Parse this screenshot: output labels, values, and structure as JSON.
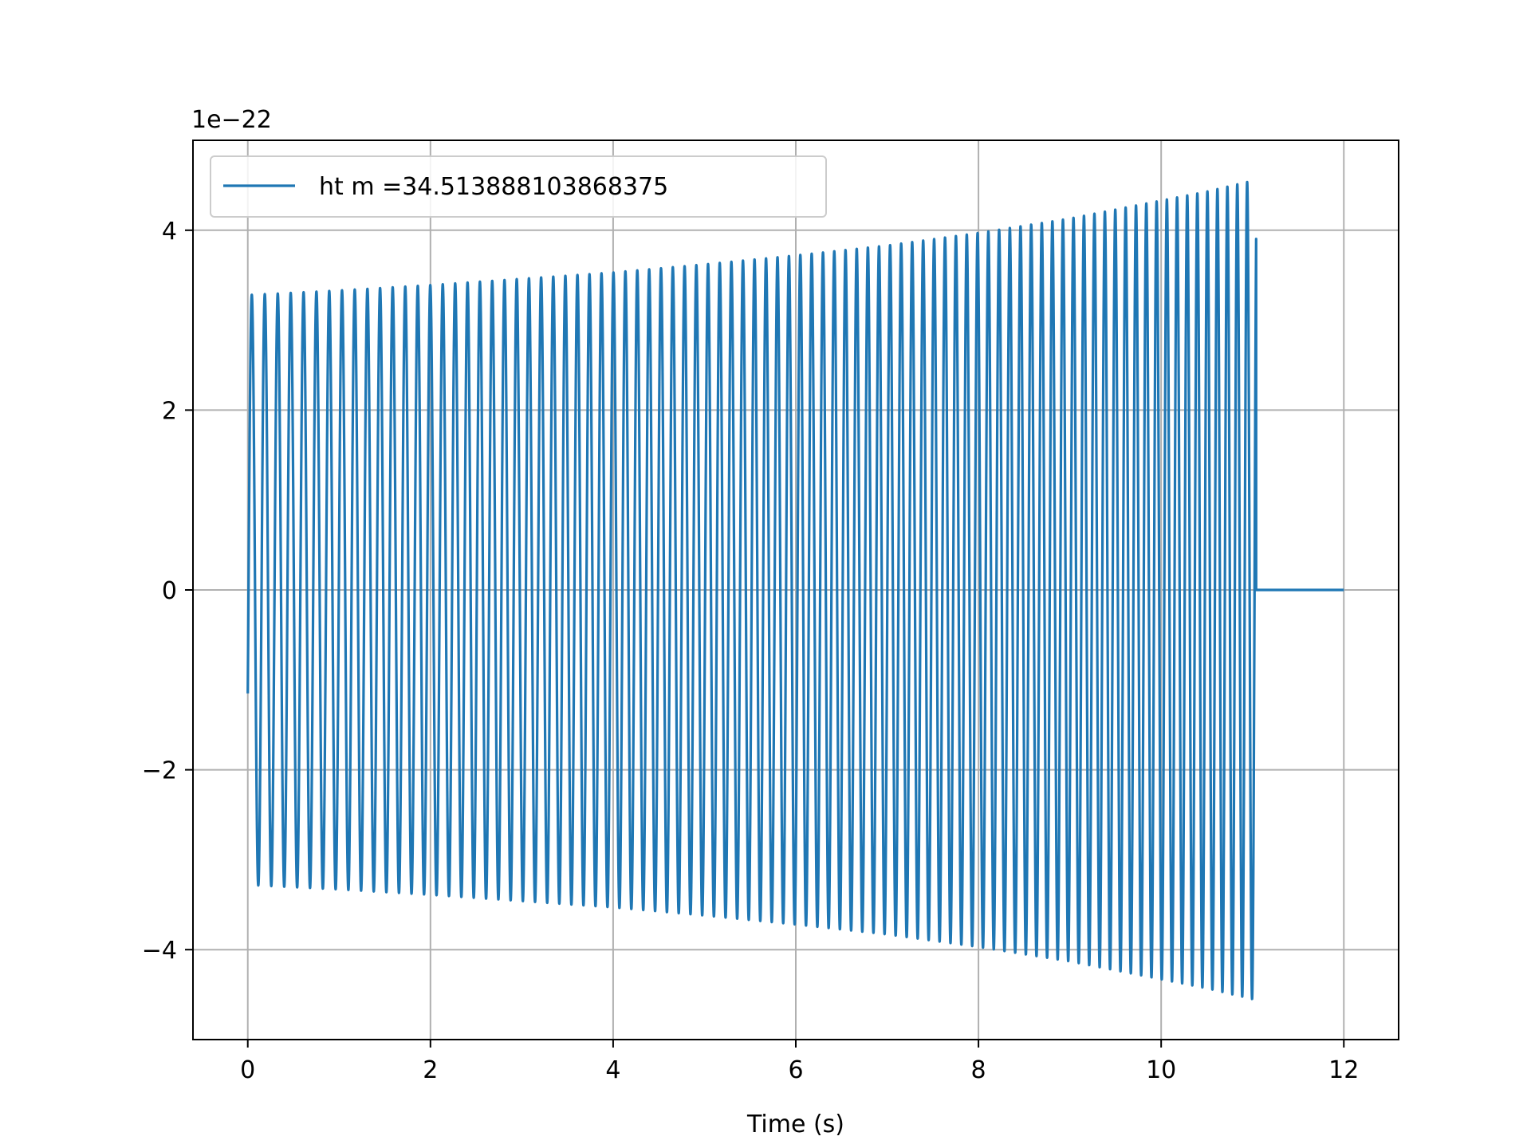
{
  "chart_data": {
    "type": "line",
    "title": "",
    "xlabel": "Time (s)",
    "ylabel": "",
    "y_offset_label": "1e−22",
    "xlim": [
      -0.6,
      12.6
    ],
    "ylim": [
      -5,
      5
    ],
    "x_ticks": [
      0,
      2,
      4,
      6,
      8,
      10,
      12
    ],
    "x_tick_labels": [
      "0",
      "2",
      "4",
      "6",
      "8",
      "10",
      "12"
    ],
    "y_ticks": [
      -4,
      -2,
      0,
      2,
      4
    ],
    "y_tick_labels": [
      "−4",
      "−2",
      "0",
      "2",
      "4"
    ],
    "grid": true,
    "legend_position": "top-left",
    "color": "#1f77b4",
    "series": [
      {
        "name": "ht m =34.513888103868375",
        "description": "chirp waveform (units of 1e-22) over time in seconds",
        "t_start": 0.0,
        "t_merge": 11.04,
        "t_end": 12.0,
        "initial_value": -1.15,
        "envelope": {
          "t": [
            0.0,
            1.0,
            2.0,
            3.0,
            4.0,
            5.0,
            6.0,
            7.0,
            8.0,
            9.0,
            10.0,
            10.5,
            11.0
          ],
          "amplitude": [
            3.28,
            3.33,
            3.39,
            3.46,
            3.53,
            3.62,
            3.72,
            3.83,
            3.97,
            4.13,
            4.33,
            4.43,
            4.55
          ]
        },
        "cycles_per_second": {
          "t": [
            0.0,
            5.0,
            10.0,
            11.0
          ],
          "frequency": [
            7.0,
            7.8,
            8.9,
            9.3
          ]
        },
        "after_merge_value": 0.0
      }
    ]
  }
}
